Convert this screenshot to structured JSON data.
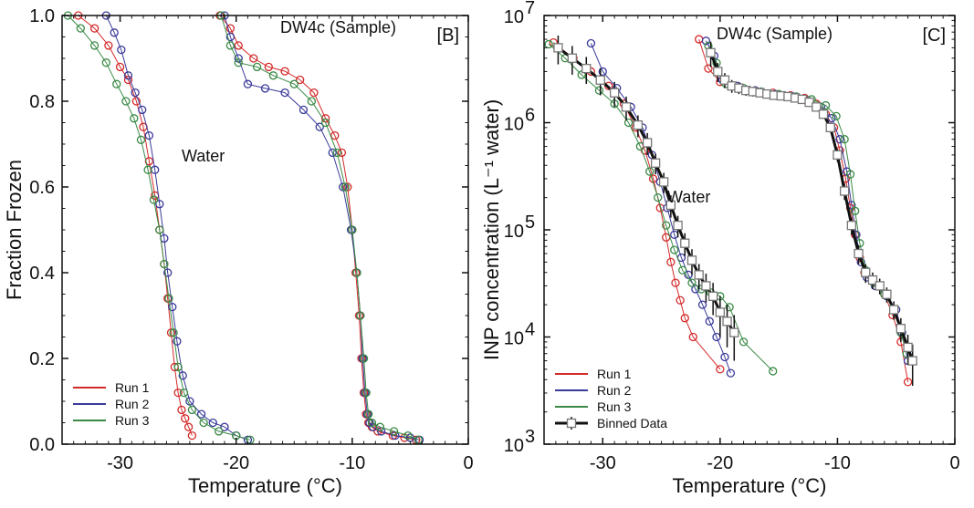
{
  "chart_data": [
    {
      "type": "scatter",
      "panel_label": "[B]",
      "xlabel": "Temperature (°C)",
      "ylabel": "Fraction Frozen",
      "xlim": [
        -35,
        0
      ],
      "ylim": [
        0,
        1
      ],
      "xticks": [
        -30,
        -20,
        -10,
        0
      ],
      "yticks": [
        0.0,
        0.2,
        0.4,
        0.6,
        0.8,
        1.0
      ],
      "xtick_labels": [
        "-30",
        "-20",
        "-10",
        "0"
      ],
      "ytick_labels": [
        "0.0",
        "0.2",
        "0.4",
        "0.6",
        "0.8",
        "1.0"
      ],
      "annotations": [
        {
          "text": "Water",
          "x": -24.7,
          "y": 0.66
        },
        {
          "text": "DW4c (Sample)",
          "x": -16.2,
          "y": 0.96
        }
      ],
      "legend": {
        "placement": "bottom-left",
        "entries": [
          "Run 1",
          "Run 2",
          "Run 3"
        ]
      },
      "series": [
        {
          "name": "Run 1",
          "color": "#d42a2a",
          "curves": [
            {
              "x": [
                -33.6,
                -32.2,
                -31.0,
                -30.0,
                -29.3,
                -28.6,
                -28.0,
                -27.5,
                -27.0,
                -26.6,
                -26.2,
                -25.9,
                -25.6,
                -25.3,
                -25.0,
                -24.7,
                -24.4,
                -24.1,
                -23.8
              ],
              "y": [
                1.0,
                0.97,
                0.93,
                0.88,
                0.85,
                0.8,
                0.74,
                0.66,
                0.58,
                0.5,
                0.42,
                0.34,
                0.26,
                0.18,
                0.12,
                0.08,
                0.06,
                0.04,
                0.02
              ]
            },
            {
              "x": [
                -21.4,
                -20.5,
                -19.8,
                -18.5,
                -17.2,
                -15.8,
                -14.5,
                -13.3,
                -12.3,
                -11.5,
                -10.9,
                -10.4,
                -10.0,
                -9.7,
                -9.4,
                -9.2,
                -9.0,
                -8.8,
                -8.6,
                -8.3,
                -7.8,
                -6.5,
                -5.5,
                -4.5
              ],
              "y": [
                1.0,
                0.97,
                0.93,
                0.9,
                0.88,
                0.87,
                0.85,
                0.82,
                0.76,
                0.72,
                0.68,
                0.6,
                0.5,
                0.4,
                0.3,
                0.2,
                0.12,
                0.07,
                0.05,
                0.04,
                0.03,
                0.02,
                0.015,
                0.01
              ]
            }
          ]
        },
        {
          "name": "Run 2",
          "color": "#3a3a9a",
          "curves": [
            {
              "x": [
                -31.2,
                -30.5,
                -29.9,
                -29.3,
                -28.7,
                -28.1,
                -27.5,
                -27.0,
                -26.6,
                -26.2,
                -25.9,
                -25.5,
                -25.1,
                -24.6,
                -24.0,
                -23.0,
                -22.0,
                -21.0,
                -20.0,
                -19.0
              ],
              "y": [
                1.0,
                0.96,
                0.92,
                0.86,
                0.82,
                0.78,
                0.72,
                0.64,
                0.56,
                0.48,
                0.4,
                0.32,
                0.24,
                0.16,
                0.1,
                0.07,
                0.05,
                0.04,
                0.02,
                0.01
              ]
            },
            {
              "x": [
                -21.0,
                -20.5,
                -19.8,
                -19.0,
                -17.5,
                -15.8,
                -14.2,
                -12.8,
                -11.7,
                -10.8,
                -10.1,
                -9.6,
                -9.3,
                -9.1,
                -8.9,
                -8.7,
                -8.5,
                -8.2,
                -7.5,
                -6.3,
                -5.0,
                -4.2
              ],
              "y": [
                1.0,
                0.95,
                0.9,
                0.84,
                0.83,
                0.82,
                0.78,
                0.74,
                0.68,
                0.6,
                0.5,
                0.4,
                0.3,
                0.2,
                0.12,
                0.07,
                0.05,
                0.04,
                0.03,
                0.02,
                0.015,
                0.01
              ]
            }
          ]
        },
        {
          "name": "Run 3",
          "color": "#3a8a46",
          "curves": [
            {
              "x": [
                -34.5,
                -33.4,
                -32.2,
                -31.2,
                -30.3,
                -29.5,
                -28.8,
                -28.2,
                -27.6,
                -27.1,
                -26.6,
                -26.2,
                -25.8,
                -25.4,
                -25.0,
                -24.5,
                -23.8,
                -22.8,
                -21.5,
                -20.0,
                -18.8
              ],
              "y": [
                1.0,
                0.97,
                0.93,
                0.89,
                0.84,
                0.8,
                0.76,
                0.71,
                0.64,
                0.57,
                0.5,
                0.42,
                0.34,
                0.26,
                0.18,
                0.12,
                0.08,
                0.05,
                0.03,
                0.02,
                0.01
              ]
            },
            {
              "x": [
                -21.3,
                -20.5,
                -19.8,
                -18.2,
                -16.8,
                -15.0,
                -13.5,
                -12.3,
                -11.3,
                -10.6,
                -10.0,
                -9.6,
                -9.3,
                -9.0,
                -8.8,
                -8.6,
                -8.3,
                -7.6,
                -6.4,
                -5.2,
                -4.3
              ],
              "y": [
                1.0,
                0.93,
                0.89,
                0.88,
                0.86,
                0.84,
                0.8,
                0.75,
                0.68,
                0.6,
                0.5,
                0.4,
                0.3,
                0.2,
                0.12,
                0.07,
                0.05,
                0.04,
                0.03,
                0.02,
                0.01
              ]
            }
          ]
        }
      ]
    },
    {
      "type": "scatter",
      "panel_label": "[C]",
      "xlabel": "Temperature (°C)",
      "ylabel": "INP concentration (L⁻¹ water)",
      "xlim": [
        -35,
        0
      ],
      "ylim": [
        1000,
        10000000
      ],
      "yscale": "log",
      "xticks": [
        -30,
        -20,
        -10,
        0
      ],
      "yticks": [
        1000,
        10000,
        100000,
        1000000,
        10000000
      ],
      "xtick_labels": [
        "-30",
        "-20",
        "-10",
        "0"
      ],
      "ytick_labels": [
        {
          "base": "10",
          "exp": "3"
        },
        {
          "base": "10",
          "exp": "4"
        },
        {
          "base": "10",
          "exp": "5"
        },
        {
          "base": "10",
          "exp": "6"
        },
        {
          "base": "10",
          "exp": "7"
        }
      ],
      "annotations": [
        {
          "text": "Water",
          "x": -24.5,
          "y": 180000
        },
        {
          "text": "DW4c (Sample)",
          "x": -20.3,
          "y": 6000000
        }
      ],
      "legend": {
        "placement": "bottom-left",
        "entries": [
          "Run 1",
          "Run 2",
          "Run 3",
          "Binned Data"
        ]
      },
      "series": [
        {
          "name": "Run 1",
          "color": "#d42a2a",
          "curves": [
            {
              "x": [
                -34.2,
                -32.5,
                -31.0,
                -29.5,
                -28.2,
                -27.2,
                -26.4,
                -25.7,
                -25.1,
                -24.6,
                -24.2,
                -23.8,
                -23.4,
                -23.0,
                -22.3,
                -20.0
              ],
              "y": [
                5600000,
                4000000,
                3000000,
                2200000,
                1500000,
                900000,
                550000,
                300000,
                160000,
                85000,
                50000,
                32000,
                22000,
                15000,
                10000,
                5000
              ]
            },
            {
              "x": [
                -21.8,
                -21.0,
                -20.0,
                -18.5,
                -17.0,
                -15.5,
                -14.0,
                -12.8,
                -11.8,
                -11.0,
                -10.3,
                -9.8,
                -9.3,
                -8.9,
                -8.5,
                -8.1,
                -7.7,
                -7.0,
                -6.0,
                -5.3,
                -4.6,
                -4.0
              ],
              "y": [
                6000000,
                3200000,
                2400000,
                2100000,
                2000000,
                1900000,
                1800000,
                1700000,
                1500000,
                1200000,
                900000,
                550000,
                300000,
                160000,
                90000,
                55000,
                40000,
                33000,
                25000,
                16000,
                9000,
                3800
              ]
            }
          ]
        },
        {
          "name": "Run 2",
          "color": "#3a3a9a",
          "curves": [
            {
              "x": [
                -31.0,
                -30.0,
                -28.8,
                -27.6,
                -26.6,
                -25.8,
                -25.1,
                -24.5,
                -23.9,
                -23.3,
                -22.7,
                -22.1,
                -21.5,
                -20.9,
                -20.3,
                -19.6,
                -19.1
              ],
              "y": [
                5500000,
                3000000,
                2100000,
                1400000,
                900000,
                500000,
                280000,
                160000,
                90000,
                55000,
                38000,
                28000,
                20000,
                14000,
                10000,
                6500,
                4600
              ]
            },
            {
              "x": [
                -21.2,
                -20.5,
                -19.8,
                -18.5,
                -17.0,
                -15.3,
                -13.8,
                -12.5,
                -11.4,
                -10.5,
                -9.8,
                -9.2,
                -8.8,
                -8.4,
                -8.0,
                -7.5,
                -6.8,
                -5.8,
                -5.0,
                -4.5,
                -4.0
              ],
              "y": [
                5800000,
                4200000,
                2500000,
                2200000,
                2000000,
                1850000,
                1750000,
                1600000,
                1400000,
                1100000,
                700000,
                350000,
                170000,
                90000,
                50000,
                36000,
                30000,
                24000,
                18000,
                11000,
                6000
              ]
            }
          ]
        },
        {
          "name": "Run 3",
          "color": "#3a8a46",
          "curves": [
            {
              "x": [
                -34.6,
                -33.2,
                -31.8,
                -30.3,
                -29.0,
                -27.8,
                -26.8,
                -26.0,
                -25.3,
                -24.6,
                -23.9,
                -23.2,
                -22.4,
                -21.6,
                -20.8,
                -20.0,
                -19.2,
                -18.0,
                -15.5
              ],
              "y": [
                5400000,
                4000000,
                2800000,
                2000000,
                1500000,
                1000000,
                600000,
                350000,
                200000,
                110000,
                65000,
                42000,
                32000,
                28000,
                26000,
                24000,
                19000,
                9000,
                4800
              ]
            },
            {
              "x": [
                -21.0,
                -20.3,
                -19.5,
                -18.0,
                -16.5,
                -15.0,
                -13.5,
                -12.2,
                -11.0,
                -10.1,
                -9.4,
                -8.9,
                -8.5,
                -8.1,
                -7.6,
                -6.9,
                -6.0,
                -5.2,
                -4.6,
                -4.1
              ],
              "y": [
                5200000,
                3600000,
                2300000,
                2100000,
                1950000,
                1850000,
                1750000,
                1650000,
                1450000,
                1150000,
                700000,
                330000,
                150000,
                75000,
                42000,
                32000,
                25000,
                18000,
                11000,
                7000
              ]
            }
          ]
        }
      ],
      "binned_data": {
        "name": "Binned Data",
        "color": "#111111",
        "curves": [
          {
            "x": [
              -33.8,
              -32.6,
              -31.4,
              -30.2,
              -29.0,
              -28.0,
              -27.0,
              -26.2,
              -25.5,
              -24.8,
              -24.2,
              -23.6,
              -23.0,
              -22.4,
              -21.8,
              -21.2,
              -20.6,
              -20.0,
              -19.4,
              -18.8
            ],
            "y": [
              5000000,
              4000000,
              3200000,
              2500000,
              1900000,
              1400000,
              950000,
              650000,
              420000,
              280000,
              170000,
              110000,
              75000,
              52000,
              38000,
              30000,
              24000,
              17000,
              14000,
              11000
            ],
            "yerr": [
              1500000,
              1200000,
              900000,
              700000,
              500000,
              350000,
              220000,
              150000,
              90000,
              60000,
              40000,
              25000,
              18000,
              14000,
              10000,
              9000,
              8000,
              7000,
              6000,
              5000
            ]
          },
          {
            "x": [
              -20.8,
              -20.2,
              -19.6,
              -19.0,
              -18.4,
              -17.8,
              -17.2,
              -16.6,
              -16.0,
              -15.4,
              -14.8,
              -14.2,
              -13.6,
              -13.0,
              -12.4,
              -11.8,
              -11.2,
              -10.6,
              -10.0,
              -9.4,
              -8.8,
              -8.2,
              -7.6,
              -7.0,
              -6.4,
              -5.8,
              -5.2,
              -4.6,
              -4.0,
              -3.6
            ],
            "y": [
              4500000,
              3000000,
              2500000,
              2200000,
              2100000,
              2000000,
              1950000,
              1900000,
              1850000,
              1800000,
              1780000,
              1750000,
              1700000,
              1650000,
              1550000,
              1400000,
              1200000,
              900000,
              500000,
              230000,
              110000,
              60000,
              40000,
              34000,
              30000,
              25000,
              18000,
              12000,
              8000,
              6000
            ],
            "yerr": [
              1200000,
              600000,
              400000,
              300000,
              250000,
              220000,
              200000,
              180000,
              170000,
              160000,
              150000,
              140000,
              130000,
              120000,
              110000,
              100000,
              90000,
              80000,
              70000,
              40000,
              20000,
              12000,
              8000,
              6000,
              5000,
              4000,
              3500,
              3000,
              2500,
              2500
            ]
          }
        ]
      }
    }
  ]
}
